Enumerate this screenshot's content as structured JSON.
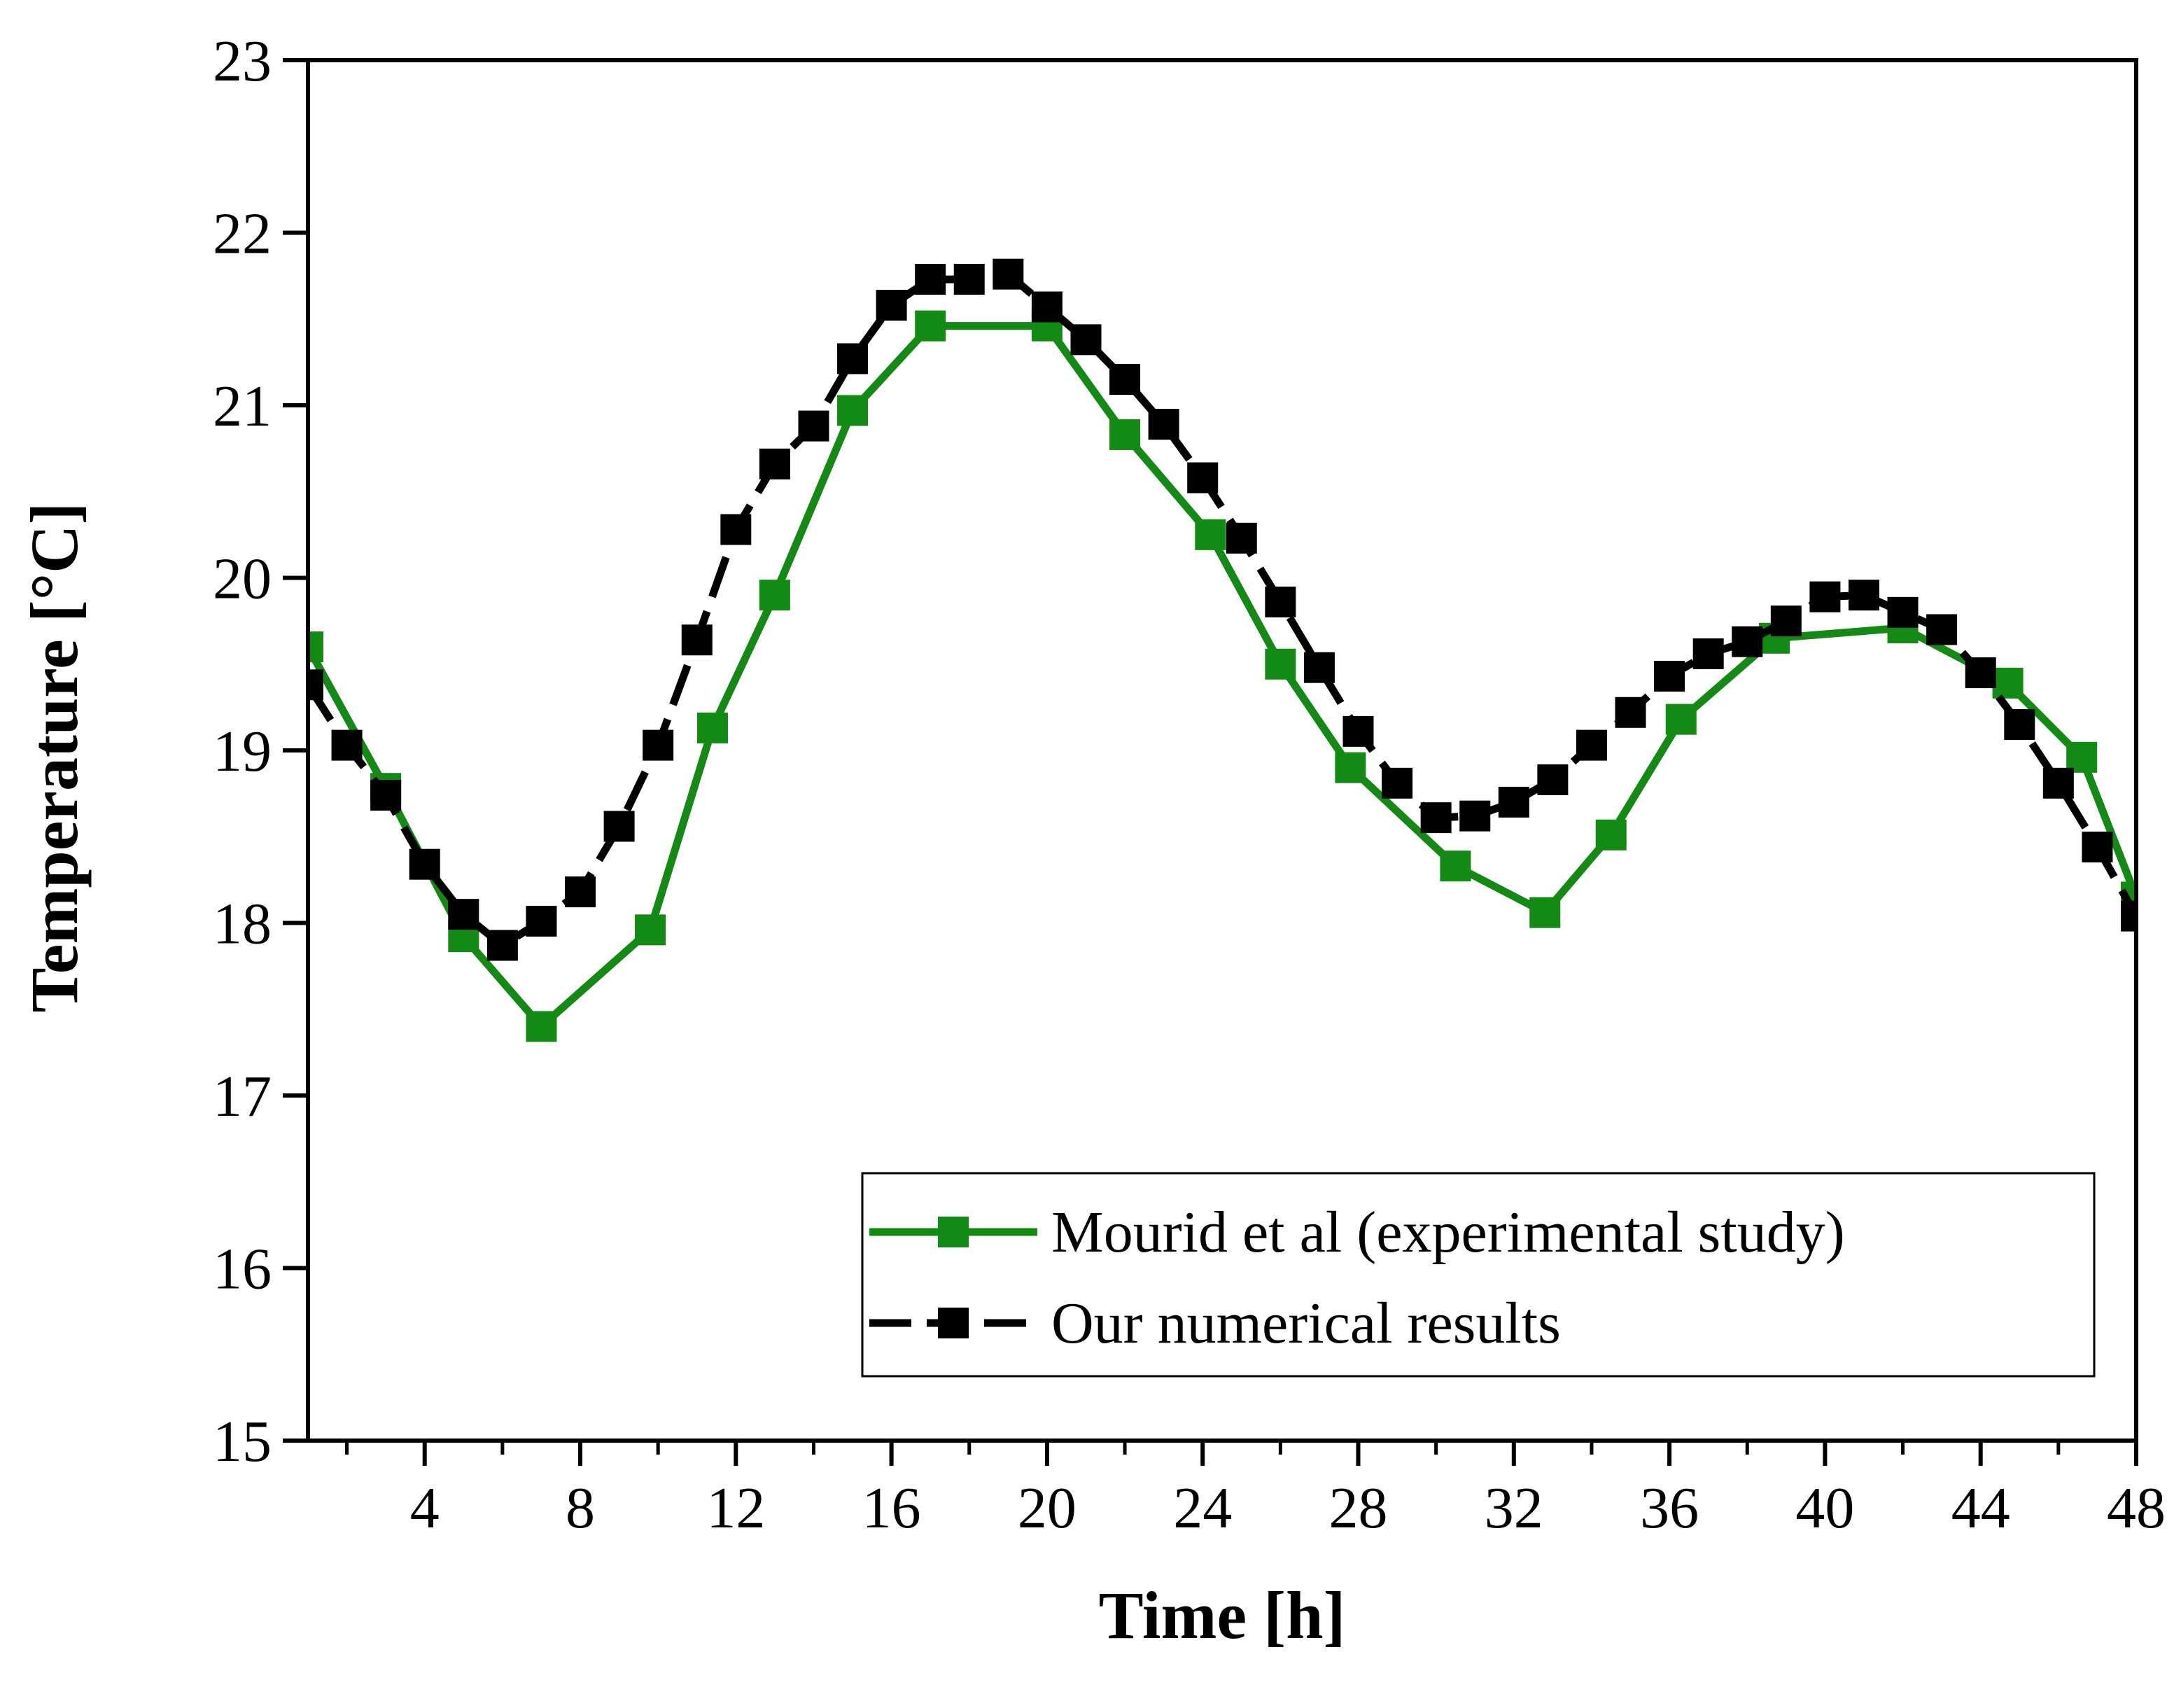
{
  "chart_data": {
    "type": "line",
    "title": "",
    "xlabel": "Time [h]",
    "ylabel": "Temperature [°C]",
    "xlim": [
      1,
      48
    ],
    "ylim": [
      15,
      23
    ],
    "xticks": [
      4,
      8,
      12,
      16,
      20,
      24,
      28,
      32,
      36,
      40,
      44,
      48
    ],
    "yticks": [
      15,
      16,
      17,
      18,
      19,
      20,
      21,
      22,
      23
    ],
    "grid": false,
    "legend_position": "bottom-right",
    "series": [
      {
        "name": "Mourid et al (experimental study)",
        "color": "#138a13",
        "marker": "square",
        "line_style": "solid",
        "x": [
          1,
          3,
          5,
          7,
          9.8,
          11.4,
          13,
          15,
          17,
          20,
          22,
          24.2,
          26,
          27.8,
          30.5,
          32.8,
          34.5,
          36.3,
          38.7,
          42,
          44.7,
          46.6,
          48
        ],
        "y": [
          19.6,
          18.78,
          17.92,
          17.4,
          17.96,
          19.13,
          19.9,
          20.97,
          21.46,
          21.46,
          20.83,
          20.25,
          19.5,
          18.9,
          18.33,
          18.06,
          18.51,
          19.18,
          19.65,
          19.71,
          19.39,
          18.96,
          18.15
        ]
      },
      {
        "name": "Our numerical results",
        "color": "#000000",
        "marker": "square",
        "line_style": "dashed",
        "x": [
          1,
          2,
          3,
          4,
          5,
          6,
          7,
          8,
          9,
          10,
          11,
          12,
          13,
          14,
          15,
          16,
          17,
          18,
          19,
          20,
          21,
          22,
          23,
          24,
          25,
          26,
          27,
          28,
          29,
          30,
          31,
          32,
          33,
          34,
          35,
          36,
          37,
          38,
          39,
          40,
          41,
          42,
          43,
          44,
          45,
          46,
          47,
          48
        ],
        "y": [
          19.38,
          19.03,
          18.74,
          18.34,
          18.05,
          17.87,
          18.01,
          18.18,
          18.56,
          19.03,
          19.64,
          20.28,
          20.66,
          20.88,
          21.27,
          21.58,
          21.73,
          21.73,
          21.76,
          21.57,
          21.38,
          21.15,
          20.89,
          20.58,
          20.23,
          19.86,
          19.48,
          19.11,
          18.81,
          18.61,
          18.62,
          18.7,
          18.83,
          19.03,
          19.22,
          19.43,
          19.56,
          19.63,
          19.75,
          19.89,
          19.9,
          19.8,
          19.7,
          19.45,
          19.15,
          18.81,
          18.44,
          18.04
        ]
      }
    ]
  }
}
